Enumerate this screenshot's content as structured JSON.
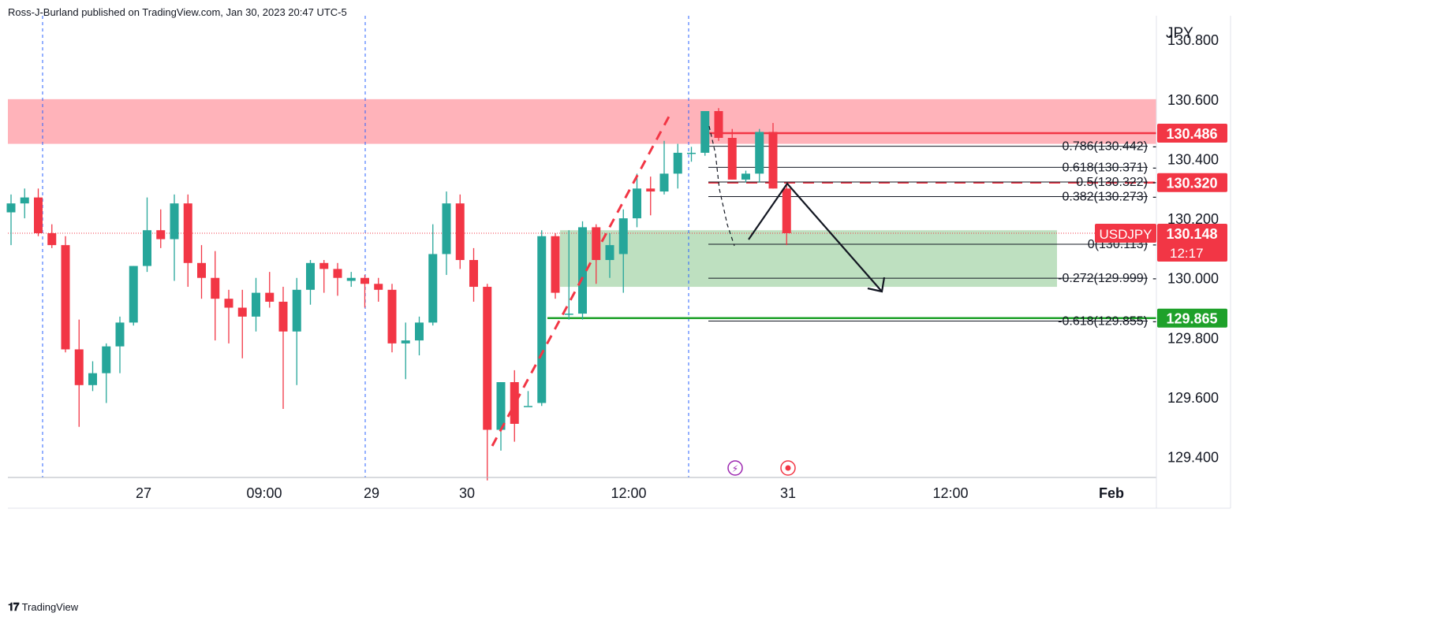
{
  "header": {
    "publisher_line": "Ross-J-Burland published on TradingView.com, Jan 30, 2023 20:47 UTC-5"
  },
  "footer": {
    "brand": "TradingView"
  },
  "colors": {
    "up": "#26a69a",
    "down": "#f23645",
    "grid_dash": "#2962ff",
    "resistance_zone": "#ffb3ba",
    "target_zone": "#b7ddb9",
    "support_line": "#1ea12a",
    "resistance_line": "#f23645"
  },
  "chart_data": {
    "type": "candlestick",
    "symbol": "USDJPY",
    "currency_label": "JPY",
    "last_price": "130.148",
    "countdown": "12:17",
    "ylim": [
      129.33,
      130.88
    ],
    "y_ticks": [
      "130.800",
      "130.600",
      "130.400",
      "130.200",
      "130.000",
      "129.800",
      "129.600",
      "129.400"
    ],
    "x_ticks": [
      "27",
      "09:00",
      "29",
      "30",
      "12:00",
      "31",
      "12:00",
      "Feb"
    ],
    "price_tags": [
      {
        "value": 130.486,
        "label": "130.486",
        "color": "#f23645"
      },
      {
        "value": 130.32,
        "label": "130.320",
        "color": "#f23645"
      },
      {
        "value": 129.865,
        "label": "129.865",
        "color": "#1ea12a"
      }
    ],
    "fib_levels": [
      {
        "label": "0.786(130.442)",
        "value": 130.442
      },
      {
        "label": "0.618(130.371)",
        "value": 130.371
      },
      {
        "label": "0.5(130.322)",
        "value": 130.322
      },
      {
        "label": "0.382(130.273)",
        "value": 130.273
      },
      {
        "label": "0(130.113)",
        "value": 130.113
      },
      {
        "label": "-0.272(129.999)",
        "value": 129.999
      },
      {
        "label": "-0.618(129.855)",
        "value": 129.855
      }
    ],
    "zones": [
      {
        "name": "resistance",
        "top": 130.6,
        "bottom": 130.45
      },
      {
        "name": "target",
        "top": 130.16,
        "bottom": 129.97
      }
    ],
    "candles": [
      [
        130.22,
        130.28,
        130.11,
        130.25
      ],
      [
        130.25,
        130.3,
        130.2,
        130.27
      ],
      [
        130.27,
        130.3,
        130.14,
        130.15
      ],
      [
        130.15,
        130.18,
        130.1,
        130.11
      ],
      [
        130.11,
        130.14,
        129.75,
        129.76
      ],
      [
        129.76,
        129.86,
        129.5,
        129.64
      ],
      [
        129.64,
        129.72,
        129.62,
        129.68
      ],
      [
        129.68,
        129.78,
        129.58,
        129.77
      ],
      [
        129.77,
        129.87,
        129.68,
        129.85
      ],
      [
        129.85,
        130.04,
        129.84,
        130.04
      ],
      [
        130.04,
        130.27,
        130.02,
        130.16
      ],
      [
        130.16,
        130.23,
        130.1,
        130.13
      ],
      [
        130.13,
        130.28,
        129.99,
        130.25
      ],
      [
        130.25,
        130.28,
        129.97,
        130.05
      ],
      [
        130.05,
        130.11,
        129.93,
        130.0
      ],
      [
        130.0,
        130.09,
        129.79,
        129.93
      ],
      [
        129.93,
        129.96,
        129.78,
        129.9
      ],
      [
        129.9,
        129.96,
        129.73,
        129.87
      ],
      [
        129.87,
        130.0,
        129.82,
        129.95
      ],
      [
        129.95,
        130.02,
        129.9,
        129.92
      ],
      [
        129.92,
        129.97,
        129.56,
        129.82
      ],
      [
        129.82,
        130.0,
        129.64,
        129.96
      ],
      [
        129.96,
        130.06,
        129.91,
        130.05
      ],
      [
        130.05,
        130.06,
        129.95,
        130.03
      ],
      [
        130.03,
        130.05,
        129.94,
        130.0
      ],
      [
        129.99,
        130.02,
        129.97,
        130.0
      ],
      [
        130.0,
        130.01,
        129.9,
        129.98
      ],
      [
        129.98,
        130.0,
        129.92,
        129.96
      ],
      [
        129.96,
        129.98,
        129.75,
        129.78
      ],
      [
        129.78,
        129.85,
        129.66,
        129.79
      ],
      [
        129.79,
        129.87,
        129.74,
        129.85
      ],
      [
        129.85,
        130.18,
        129.84,
        130.08
      ],
      [
        130.08,
        130.29,
        130.01,
        130.25
      ],
      [
        130.25,
        130.28,
        130.03,
        130.06
      ],
      [
        130.06,
        130.1,
        129.92,
        129.97
      ],
      [
        129.97,
        129.98,
        129.32,
        129.49
      ],
      [
        129.49,
        129.65,
        129.42,
        129.65
      ],
      [
        129.65,
        129.69,
        129.45,
        129.51
      ],
      [
        129.57,
        129.62,
        129.57,
        129.57
      ],
      [
        129.58,
        130.16,
        129.57,
        130.14
      ],
      [
        130.14,
        130.15,
        129.93,
        129.95
      ],
      [
        129.88,
        130.16,
        129.86,
        129.88
      ],
      [
        129.88,
        130.19,
        129.86,
        130.17
      ],
      [
        130.17,
        130.18,
        129.98,
        130.06
      ],
      [
        130.06,
        130.15,
        130.0,
        130.11
      ],
      [
        130.08,
        130.23,
        129.95,
        130.2
      ],
      [
        130.2,
        130.35,
        130.17,
        130.3
      ],
      [
        130.3,
        130.34,
        130.21,
        130.29
      ],
      [
        130.29,
        130.46,
        130.28,
        130.35
      ],
      [
        130.35,
        130.45,
        130.3,
        130.42
      ],
      [
        130.42,
        130.44,
        130.39,
        130.42
      ],
      [
        130.42,
        130.56,
        130.41,
        130.56
      ],
      [
        130.56,
        130.57,
        130.46,
        130.47
      ],
      [
        130.47,
        130.5,
        130.33,
        130.33
      ],
      [
        130.33,
        130.36,
        130.32,
        130.35
      ],
      [
        130.35,
        130.5,
        130.32,
        130.49
      ],
      [
        130.49,
        130.52,
        130.3,
        130.3
      ],
      [
        130.3,
        130.31,
        130.11,
        130.15
      ]
    ]
  }
}
